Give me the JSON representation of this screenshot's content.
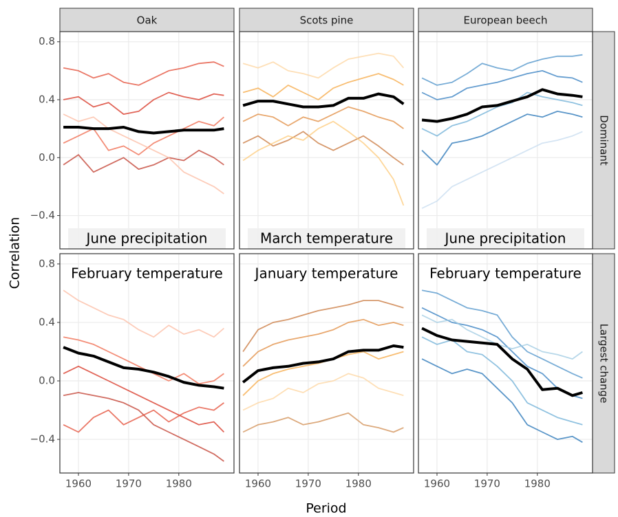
{
  "chart_data": {
    "type": "line",
    "x_label": "Period",
    "y_label": "Correlation",
    "columns": [
      "Oak",
      "Scots pine",
      "European beech"
    ],
    "rows": [
      "Dominant",
      "Largest change"
    ],
    "x": [
      1957,
      1960,
      1963,
      1966,
      1969,
      1972,
      1975,
      1978,
      1981,
      1984,
      1987,
      1989
    ],
    "xlim": [
      1956.3,
      1991
    ],
    "xticks": [
      1960,
      1970,
      1980
    ],
    "ylim": [
      -0.63,
      0.87
    ],
    "yticks": [
      {
        "value": -0.4,
        "label": "−0.4"
      },
      {
        "value": 0,
        "label": "0.0"
      },
      0.4,
      0.8
    ],
    "grid": true,
    "panels": [
      {
        "annotation": "June precipitation",
        "series": [
          {
            "color": "#e34a33",
            "values": [
              0.62,
              0.6,
              0.55,
              0.58,
              0.52,
              0.5,
              0.55,
              0.6,
              0.62,
              0.65,
              0.66,
              0.63
            ]
          },
          {
            "color": "#d7301f",
            "values": [
              0.4,
              0.42,
              0.35,
              0.38,
              0.3,
              0.32,
              0.4,
              0.45,
              0.42,
              0.4,
              0.44,
              0.43
            ]
          },
          {
            "color": "#ef6548",
            "values": [
              0.1,
              0.15,
              0.2,
              0.05,
              0.08,
              0.02,
              0.1,
              0.15,
              0.2,
              0.25,
              0.22,
              0.28
            ]
          },
          {
            "color": "#c0392b",
            "values": [
              -0.05,
              0.02,
              -0.1,
              -0.05,
              0.0,
              -0.08,
              -0.05,
              0.0,
              -0.02,
              0.05,
              0.0,
              -0.05
            ]
          },
          {
            "color": "#fcbba1",
            "values": [
              0.3,
              0.25,
              0.28,
              0.2,
              0.15,
              0.1,
              0.05,
              0.0,
              -0.1,
              -0.15,
              -0.2,
              -0.25
            ]
          },
          {
            "color": "#000000",
            "values": [
              0.21,
              0.21,
              0.2,
              0.2,
              0.21,
              0.18,
              0.17,
              0.18,
              0.19,
              0.19,
              0.19,
              0.2
            ]
          }
        ]
      },
      {
        "annotation": "March temperature",
        "series": [
          {
            "color": "#fdd49e",
            "values": [
              0.65,
              0.62,
              0.66,
              0.6,
              0.58,
              0.55,
              0.62,
              0.68,
              0.7,
              0.72,
              0.7,
              0.62
            ]
          },
          {
            "color": "#f5a742",
            "values": [
              0.45,
              0.48,
              0.42,
              0.5,
              0.45,
              0.4,
              0.48,
              0.52,
              0.55,
              0.58,
              0.54,
              0.5
            ]
          },
          {
            "color": "#e08a3c",
            "values": [
              0.25,
              0.3,
              0.28,
              0.22,
              0.28,
              0.25,
              0.3,
              0.35,
              0.32,
              0.28,
              0.25,
              0.2
            ]
          },
          {
            "color": "#c8763a",
            "values": [
              0.1,
              0.15,
              0.08,
              0.12,
              0.18,
              0.1,
              0.05,
              0.1,
              0.15,
              0.08,
              0.0,
              -0.05
            ]
          },
          {
            "color": "#fdc978",
            "values": [
              -0.02,
              0.05,
              0.1,
              0.15,
              0.12,
              0.2,
              0.25,
              0.18,
              0.1,
              0.0,
              -0.15,
              -0.33
            ]
          },
          {
            "color": "#000000",
            "values": [
              0.36,
              0.39,
              0.39,
              0.37,
              0.35,
              0.35,
              0.36,
              0.41,
              0.41,
              0.44,
              0.42,
              0.37
            ]
          }
        ]
      },
      {
        "annotation": "June precipitation",
        "series": [
          {
            "color": "#4a90c8",
            "values": [
              0.55,
              0.5,
              0.52,
              0.58,
              0.65,
              0.62,
              0.6,
              0.65,
              0.68,
              0.7,
              0.7,
              0.71
            ]
          },
          {
            "color": "#2f7bbf",
            "values": [
              0.45,
              0.4,
              0.42,
              0.48,
              0.5,
              0.52,
              0.55,
              0.58,
              0.6,
              0.56,
              0.55,
              0.52
            ]
          },
          {
            "color": "#6baed6",
            "values": [
              0.2,
              0.15,
              0.22,
              0.25,
              0.3,
              0.35,
              0.38,
              0.45,
              0.42,
              0.4,
              0.38,
              0.36
            ]
          },
          {
            "color": "#2171b5",
            "values": [
              0.05,
              -0.05,
              0.1,
              0.12,
              0.15,
              0.2,
              0.25,
              0.3,
              0.28,
              0.32,
              0.3,
              0.28
            ]
          },
          {
            "color": "#c6dbef",
            "values": [
              -0.35,
              -0.3,
              -0.2,
              -0.15,
              -0.1,
              -0.05,
              0.0,
              0.05,
              0.1,
              0.12,
              0.15,
              0.18
            ]
          },
          {
            "color": "#000000",
            "values": [
              0.26,
              0.25,
              0.27,
              0.3,
              0.35,
              0.36,
              0.39,
              0.42,
              0.47,
              0.44,
              0.43,
              0.42
            ]
          }
        ]
      },
      {
        "annotation": "February temperature",
        "series": [
          {
            "color": "#fcbba1",
            "values": [
              0.62,
              0.55,
              0.5,
              0.45,
              0.42,
              0.35,
              0.3,
              0.38,
              0.32,
              0.35,
              0.3,
              0.36
            ]
          },
          {
            "color": "#ef6548",
            "values": [
              0.3,
              0.28,
              0.25,
              0.2,
              0.15,
              0.1,
              0.05,
              0.0,
              0.05,
              -0.02,
              0.0,
              0.05
            ]
          },
          {
            "color": "#d7301f",
            "values": [
              0.05,
              0.1,
              0.05,
              0.0,
              -0.05,
              -0.1,
              -0.15,
              -0.2,
              -0.25,
              -0.3,
              -0.28,
              -0.35
            ]
          },
          {
            "color": "#c0392b",
            "values": [
              -0.1,
              -0.08,
              -0.1,
              -0.12,
              -0.15,
              -0.2,
              -0.3,
              -0.35,
              -0.4,
              -0.45,
              -0.5,
              -0.55
            ]
          },
          {
            "color": "#e34a33",
            "values": [
              -0.3,
              -0.35,
              -0.25,
              -0.2,
              -0.3,
              -0.25,
              -0.2,
              -0.28,
              -0.22,
              -0.18,
              -0.2,
              -0.15
            ]
          },
          {
            "color": "#000000",
            "values": [
              0.23,
              0.19,
              0.17,
              0.13,
              0.09,
              0.08,
              0.06,
              0.03,
              -0.01,
              -0.03,
              -0.04,
              -0.05
            ]
          }
        ]
      },
      {
        "annotation": "January temperature",
        "series": [
          {
            "color": "#c8763a",
            "values": [
              0.2,
              0.35,
              0.4,
              0.42,
              0.45,
              0.48,
              0.5,
              0.52,
              0.55,
              0.55,
              0.52,
              0.5
            ]
          },
          {
            "color": "#e08a3c",
            "values": [
              0.1,
              0.2,
              0.25,
              0.28,
              0.3,
              0.32,
              0.35,
              0.4,
              0.42,
              0.38,
              0.4,
              0.38
            ]
          },
          {
            "color": "#f5a742",
            "values": [
              -0.1,
              0.0,
              0.05,
              0.08,
              0.1,
              0.12,
              0.15,
              0.18,
              0.2,
              0.15,
              0.18,
              0.2
            ]
          },
          {
            "color": "#fdd49e",
            "values": [
              -0.2,
              -0.15,
              -0.12,
              -0.05,
              -0.08,
              -0.02,
              0.0,
              0.05,
              0.02,
              -0.05,
              -0.08,
              -0.1
            ]
          },
          {
            "color": "#d08c50",
            "values": [
              -0.35,
              -0.3,
              -0.28,
              -0.25,
              -0.3,
              -0.28,
              -0.25,
              -0.22,
              -0.3,
              -0.32,
              -0.35,
              -0.32
            ]
          },
          {
            "color": "#000000",
            "values": [
              -0.01,
              0.07,
              0.09,
              0.1,
              0.12,
              0.13,
              0.15,
              0.2,
              0.21,
              0.21,
              0.24,
              0.23
            ]
          }
        ]
      },
      {
        "annotation": "February temperature",
        "series": [
          {
            "color": "#4a90c8",
            "values": [
              0.62,
              0.6,
              0.55,
              0.5,
              0.48,
              0.45,
              0.3,
              0.2,
              0.15,
              0.1,
              0.05,
              0.02
            ]
          },
          {
            "color": "#2f7bbf",
            "values": [
              0.5,
              0.45,
              0.4,
              0.38,
              0.35,
              0.3,
              0.2,
              0.1,
              0.05,
              -0.05,
              -0.1,
              -0.12
            ]
          },
          {
            "color": "#6baed6",
            "values": [
              0.3,
              0.25,
              0.28,
              0.2,
              0.18,
              0.1,
              0.0,
              -0.15,
              -0.2,
              -0.25,
              -0.28,
              -0.3
            ]
          },
          {
            "color": "#2171b5",
            "values": [
              0.15,
              0.1,
              0.05,
              0.08,
              0.05,
              -0.05,
              -0.15,
              -0.3,
              -0.35,
              -0.4,
              -0.38,
              -0.42
            ]
          },
          {
            "color": "#9ecae1",
            "values": [
              0.45,
              0.4,
              0.42,
              0.35,
              0.3,
              0.25,
              0.22,
              0.25,
              0.2,
              0.18,
              0.15,
              0.2
            ]
          },
          {
            "color": "#000000",
            "values": [
              0.36,
              0.31,
              0.28,
              0.27,
              0.26,
              0.25,
              0.15,
              0.08,
              -0.06,
              -0.05,
              -0.1,
              -0.08
            ]
          }
        ]
      }
    ]
  }
}
